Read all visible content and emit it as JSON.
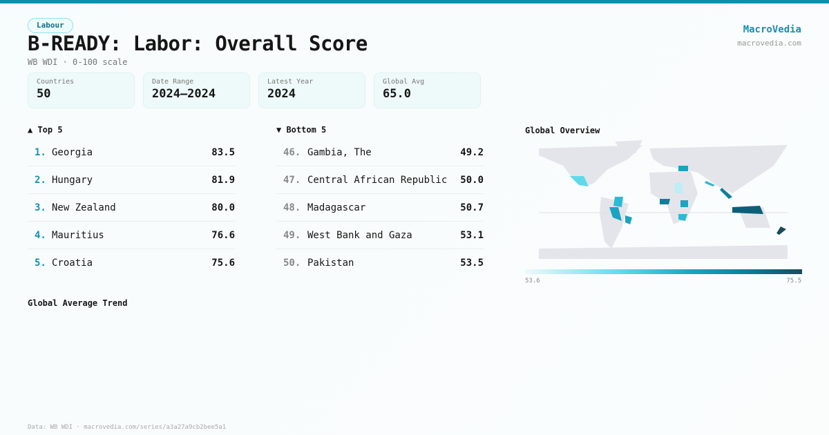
{
  "header": {
    "badge": "Labour",
    "title": "B-READY: Labor: Overall Score",
    "subtitle": "WB WDI · 0-100 scale",
    "brand": "MacroVedia",
    "brand_url": "macrovedia.com"
  },
  "stats": [
    {
      "label": "Countries",
      "value": "50"
    },
    {
      "label": "Date Range",
      "value": "2024–2024"
    },
    {
      "label": "Latest Year",
      "value": "2024"
    },
    {
      "label": "Global Avg",
      "value": "65.0"
    }
  ],
  "top5": {
    "title": "▲ Top 5",
    "items": [
      {
        "rank": "1.",
        "name": "Georgia",
        "score": "83.5"
      },
      {
        "rank": "2.",
        "name": "Hungary",
        "score": "81.9"
      },
      {
        "rank": "3.",
        "name": "New Zealand",
        "score": "80.0"
      },
      {
        "rank": "4.",
        "name": "Mauritius",
        "score": "76.6"
      },
      {
        "rank": "5.",
        "name": "Croatia",
        "score": "75.6"
      }
    ]
  },
  "bottom5": {
    "title": "▼ Bottom 5",
    "items": [
      {
        "rank": "46.",
        "name": "Gambia, The",
        "score": "49.2"
      },
      {
        "rank": "47.",
        "name": "Central African Republic",
        "score": "50.0"
      },
      {
        "rank": "48.",
        "name": "Madagascar",
        "score": "50.7"
      },
      {
        "rank": "49.",
        "name": "West Bank and Gaza",
        "score": "53.1"
      },
      {
        "rank": "50.",
        "name": "Pakistan",
        "score": "53.5"
      }
    ]
  },
  "map": {
    "title": "Global Overview",
    "legend_min": "53.6",
    "legend_max": "75.5",
    "colors": {
      "land": "#e4e5ea",
      "low": "#eefafc",
      "high": "#164c5c"
    }
  },
  "trend": {
    "title": "Global Average Trend"
  },
  "footer": "Data: WB WDI · macrovedia.com/series/a3a27a9cb2bee5a1"
}
